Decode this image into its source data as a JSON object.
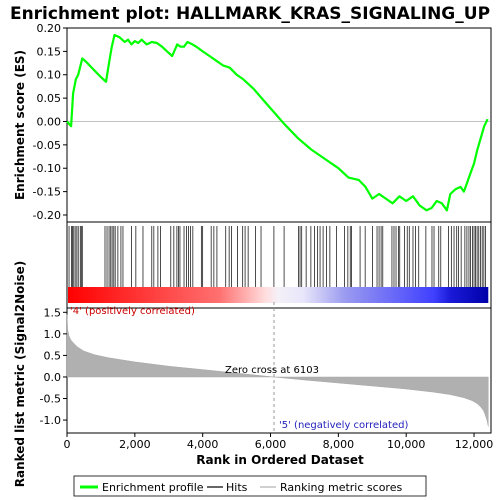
{
  "title": "Enrichment plot: HALLMARK_KRAS_SIGNALING_UP",
  "colors": {
    "profile": "#00ff00",
    "hits": "#000000",
    "metric": "#b0b0b0",
    "pos": "#ff0000",
    "neg": "#0000ff"
  },
  "legend": {
    "items": [
      {
        "label": "Enrichment profile",
        "color": "#00ff00",
        "kind": "line-thick"
      },
      {
        "label": "Hits",
        "color": "#000000",
        "kind": "line-thin"
      },
      {
        "label": "Ranking metric scores",
        "color": "#b0b0b0",
        "kind": "line-thin"
      }
    ]
  },
  "chart_data": [
    {
      "type": "line",
      "ylabel": "Enrichment score (ES)",
      "xlim": [
        0,
        12500
      ],
      "ylim": [
        -0.215,
        0.2
      ],
      "yticks": [
        "0.20",
        "0.15",
        "0.10",
        "0.05",
        "0.00",
        "-0.05",
        "-0.10",
        "-0.15",
        "-0.20"
      ],
      "ytick_values": [
        0.2,
        0.15,
        0.1,
        0.05,
        0.0,
        -0.05,
        -0.1,
        -0.15,
        -0.2
      ],
      "series": [
        {
          "x": [
            0,
            120,
            180,
            260,
            330,
            450,
            600,
            800,
            1000,
            1150,
            1250,
            1320,
            1400,
            1550,
            1700,
            1800,
            1900,
            2000,
            2100,
            2200,
            2350,
            2500,
            2650,
            2800,
            2950,
            3100,
            3250,
            3350,
            3450,
            3550,
            3700,
            3850,
            4000,
            4200,
            4400,
            4600,
            4800,
            5000,
            5200,
            5500,
            5800,
            6100,
            6400,
            6800,
            7200,
            7600,
            8000,
            8300,
            8600,
            8800,
            9000,
            9200,
            9400,
            9600,
            9800,
            10000,
            10200,
            10400,
            10600,
            10750,
            10900,
            11050,
            11200,
            11300,
            11450,
            11600,
            11700,
            11800,
            11900,
            12000,
            12100,
            12200,
            12300,
            12400
          ],
          "y": [
            0.0,
            -0.01,
            0.06,
            0.09,
            0.1,
            0.135,
            0.125,
            0.11,
            0.095,
            0.085,
            0.13,
            0.16,
            0.185,
            0.18,
            0.17,
            0.175,
            0.165,
            0.172,
            0.168,
            0.175,
            0.165,
            0.17,
            0.168,
            0.16,
            0.15,
            0.14,
            0.165,
            0.16,
            0.16,
            0.17,
            0.165,
            0.158,
            0.15,
            0.14,
            0.13,
            0.12,
            0.115,
            0.1,
            0.09,
            0.07,
            0.045,
            0.02,
            -0.005,
            -0.035,
            -0.06,
            -0.08,
            -0.1,
            -0.12,
            -0.125,
            -0.14,
            -0.165,
            -0.155,
            -0.165,
            -0.175,
            -0.16,
            -0.17,
            -0.16,
            -0.18,
            -0.19,
            -0.185,
            -0.17,
            -0.175,
            -0.19,
            -0.155,
            -0.145,
            -0.14,
            -0.15,
            -0.13,
            -0.11,
            -0.09,
            -0.06,
            -0.035,
            -0.01,
            0.005
          ]
        }
      ]
    },
    {
      "type": "heatmap",
      "name": "hits",
      "hits": [
        60,
        130,
        160,
        200,
        240,
        290,
        330,
        390,
        420,
        450,
        1120,
        1180,
        1240,
        1290,
        1330,
        1380,
        1420,
        1500,
        1590,
        1650,
        1900,
        2030,
        2240,
        2500,
        2560,
        2680,
        2760,
        3060,
        3150,
        3240,
        3290,
        3330,
        3450,
        3520,
        3580,
        3640,
        3710,
        3960,
        4000,
        4250,
        4330,
        4420,
        4680,
        4780,
        4850,
        5030,
        5180,
        5250,
        5340,
        5560,
        5720,
        6100,
        6400,
        6820,
        6870,
        6920,
        7050,
        7190,
        7300,
        7390,
        7460,
        7550,
        7650,
        7750,
        7950,
        8180,
        8280,
        8350,
        8390,
        8640,
        8790,
        9010,
        9140,
        9200,
        9260,
        9310,
        9580,
        9640,
        9700,
        9770,
        9810,
        9950,
        10030,
        10090,
        10200,
        10270,
        10370,
        10580,
        10760,
        10820,
        10960,
        11020,
        11250,
        11330,
        11410,
        11490,
        11540,
        11620,
        11730,
        11790,
        11850,
        11900,
        11950,
        12000,
        12040,
        12090,
        12140,
        12190,
        12240,
        12290,
        12340
      ]
    },
    {
      "type": "area",
      "ylabel": "Ranked list metric (Signal2Noise)",
      "xlabel": "Rank in Ordered Dataset",
      "xlim": [
        0,
        12500
      ],
      "ylim": [
        -1.3,
        1.6
      ],
      "xticks": [
        "0",
        "2,000",
        "4,000",
        "6,000",
        "8,000",
        "10,000",
        "12,000"
      ],
      "xtick_values": [
        0,
        2000,
        4000,
        6000,
        8000,
        10000,
        12000
      ],
      "yticks": [
        "1.5",
        "1.0",
        "0.5",
        "0.0",
        "-0.5",
        "-1.0"
      ],
      "ytick_values": [
        1.5,
        1.0,
        0.5,
        0.0,
        -0.5,
        -1.0
      ],
      "series": [
        {
          "x": [
            0,
            20,
            60,
            120,
            200,
            300,
            500,
            800,
            1200,
            2000,
            3000,
            4000,
            5000,
            6103,
            7000,
            8000,
            9000,
            10000,
            10800,
            11300,
            11700,
            11950,
            12100,
            12200,
            12280,
            12330,
            12380,
            12420
          ],
          "y": [
            1.45,
            1.1,
            0.95,
            0.85,
            0.78,
            0.7,
            0.6,
            0.52,
            0.45,
            0.35,
            0.25,
            0.17,
            0.09,
            0.0,
            -0.07,
            -0.14,
            -0.21,
            -0.28,
            -0.35,
            -0.41,
            -0.48,
            -0.55,
            -0.62,
            -0.7,
            -0.78,
            -0.88,
            -1.0,
            -1.15
          ]
        }
      ],
      "annotations": {
        "pos_label": "'4' (positively correlated)",
        "neg_label": "'5' (negatively correlated)",
        "zero_cross": "Zero cross at 6103",
        "zero_cross_x": 6103
      }
    }
  ]
}
